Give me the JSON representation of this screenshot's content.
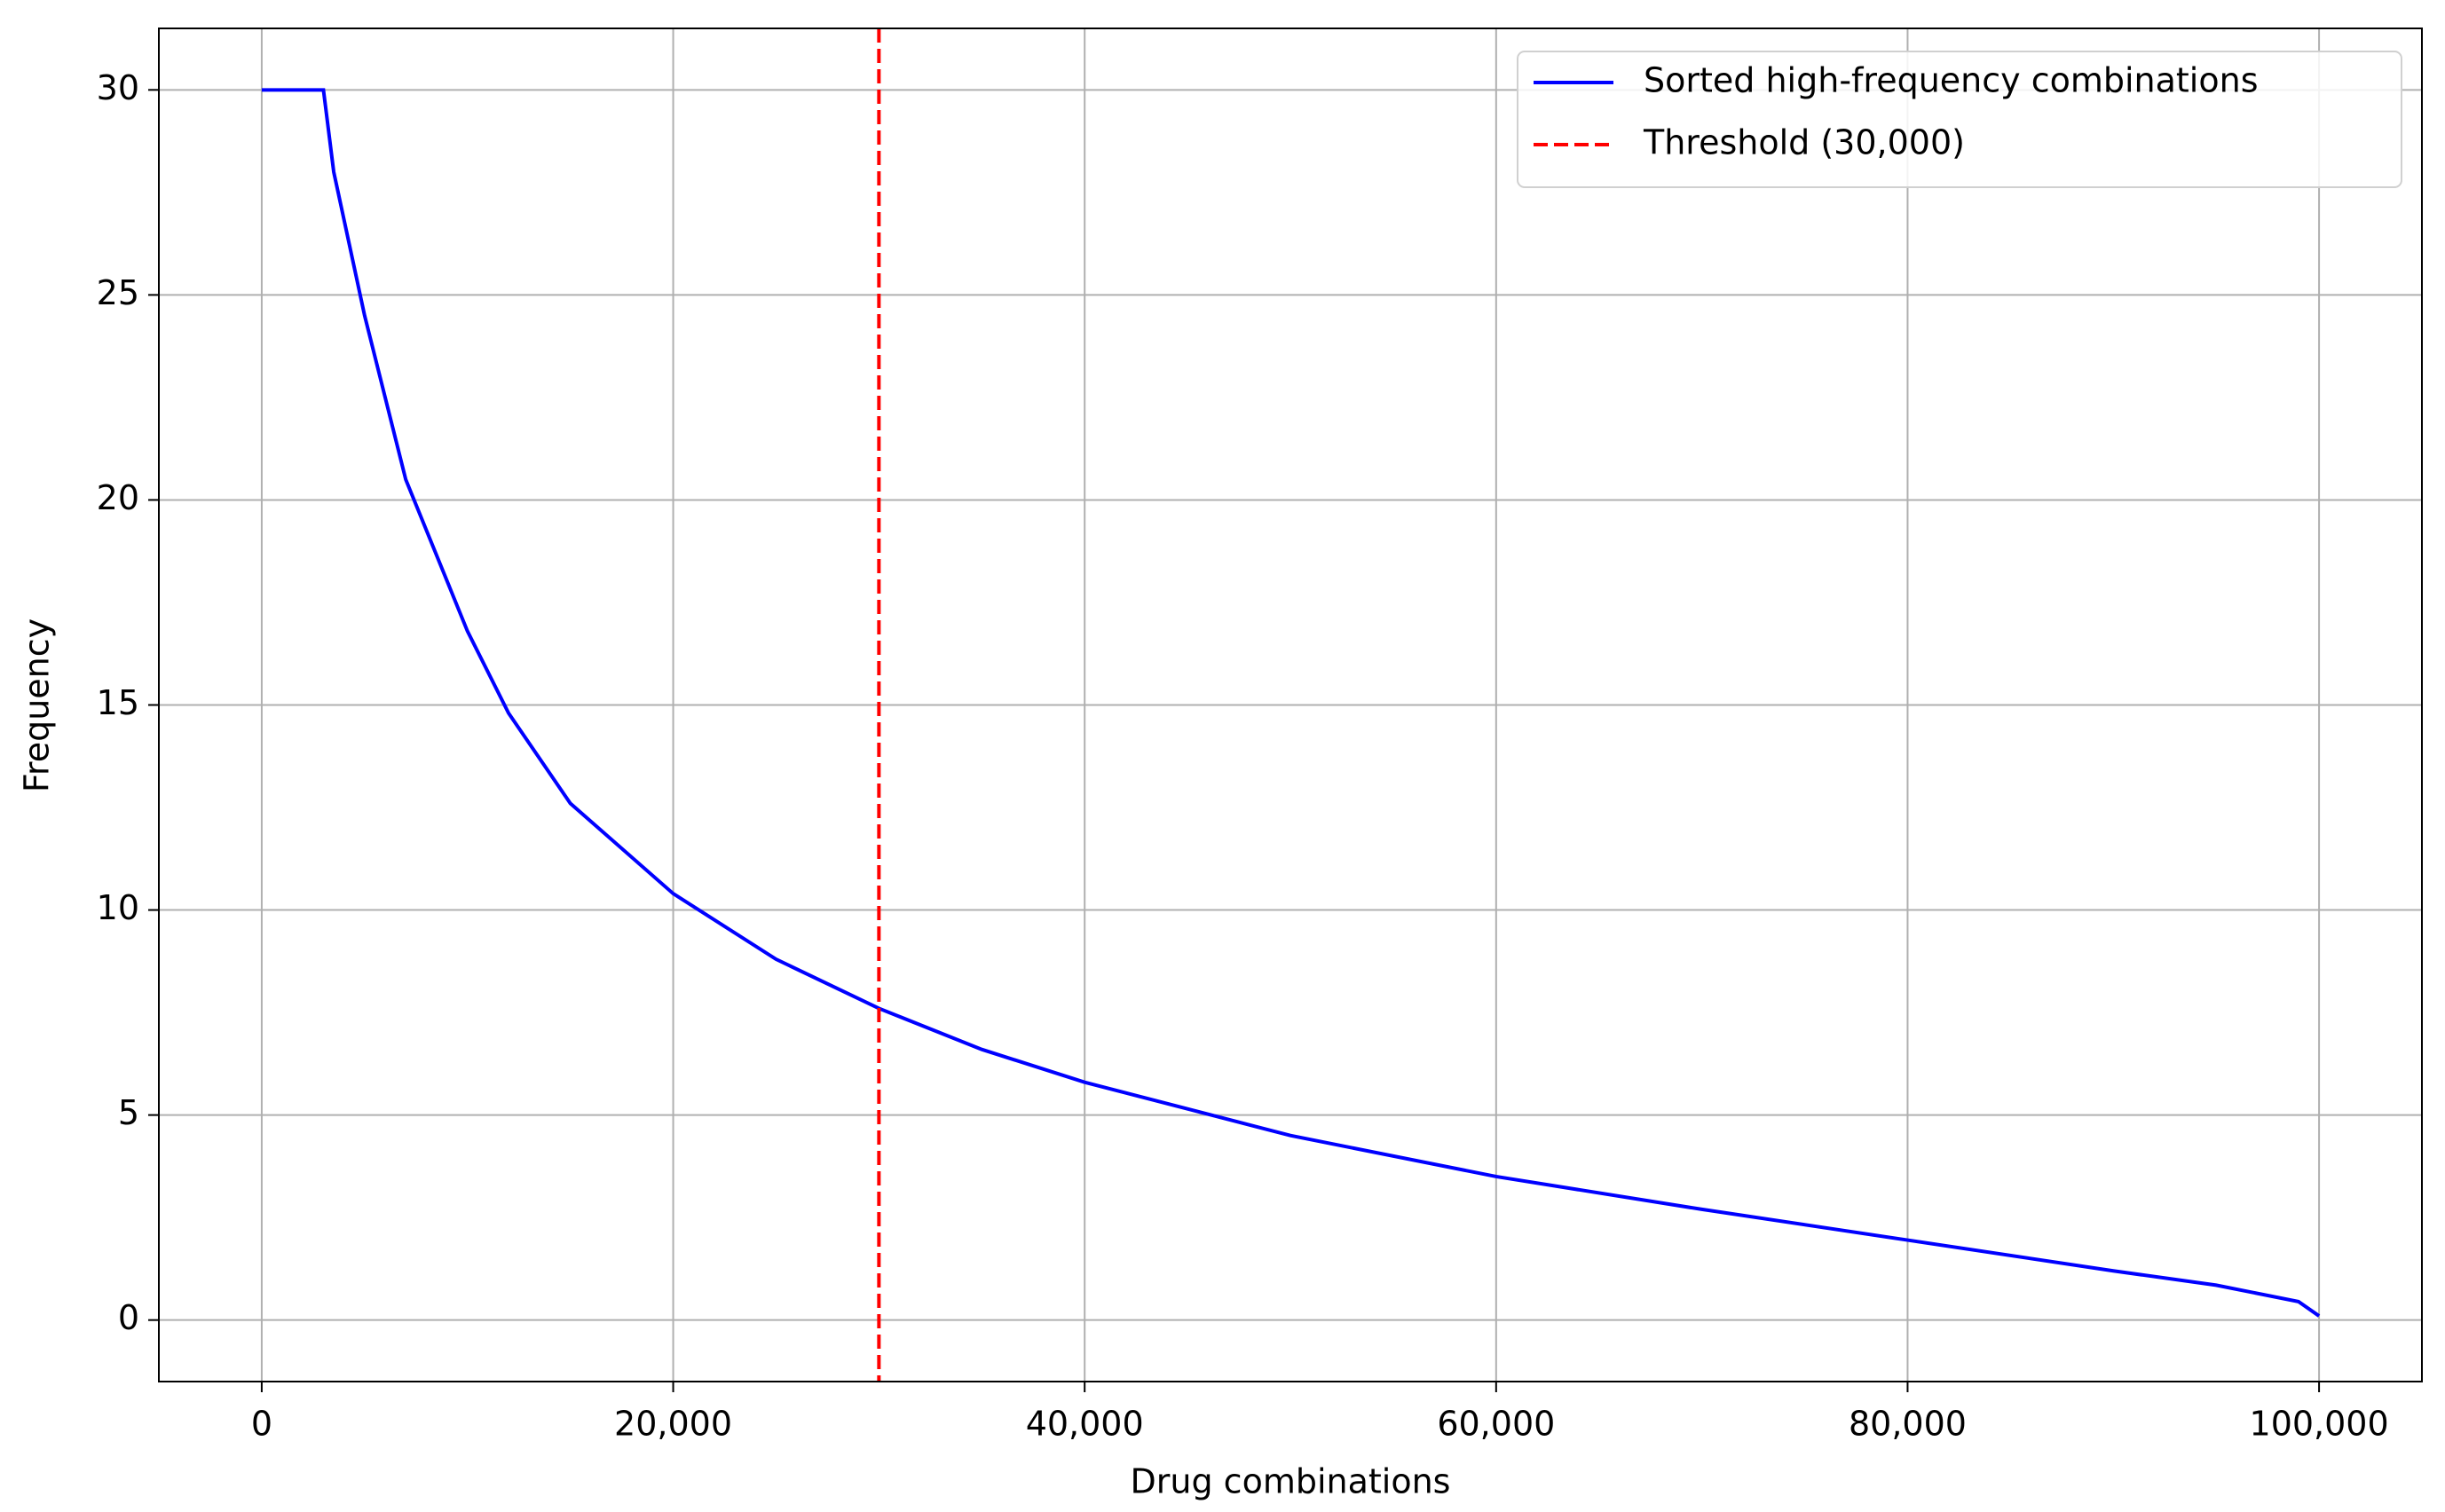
{
  "chart_data": {
    "type": "line",
    "xlabel": "Drug combinations",
    "ylabel": "Frequency",
    "x": [
      0,
      3000,
      3500,
      5000,
      7000,
      10000,
      12000,
      15000,
      20000,
      25000,
      30000,
      35000,
      40000,
      50000,
      60000,
      70000,
      80000,
      90000,
      95000,
      99000,
      100000
    ],
    "series": [
      {
        "name": "Sorted high-frequency combinations",
        "color": "#0000ff",
        "values": [
          30,
          30,
          28,
          24.5,
          20.5,
          16.8,
          14.8,
          12.6,
          10.4,
          8.8,
          7.6,
          6.6,
          5.8,
          4.5,
          3.5,
          2.7,
          1.95,
          1.2,
          0.85,
          0.45,
          0.1
        ]
      }
    ],
    "threshold": {
      "name": "Threshold (30,000)",
      "x": 30000,
      "color": "#ff0000"
    },
    "xlim": [
      -5000,
      105000
    ],
    "xticks": [
      0,
      {
        "value": 20000,
        "label": "20,000"
      },
      {
        "value": 40000,
        "label": "40,000"
      },
      {
        "value": 60000,
        "label": "60,000"
      },
      {
        "value": 80000,
        "label": "80,000"
      },
      {
        "value": 100000,
        "label": "100,000"
      }
    ],
    "ylim": [
      -1.5,
      31.5
    ],
    "yticks": [
      0,
      5,
      10,
      15,
      20,
      25,
      30
    ],
    "grid": true,
    "legend": "upper right"
  }
}
